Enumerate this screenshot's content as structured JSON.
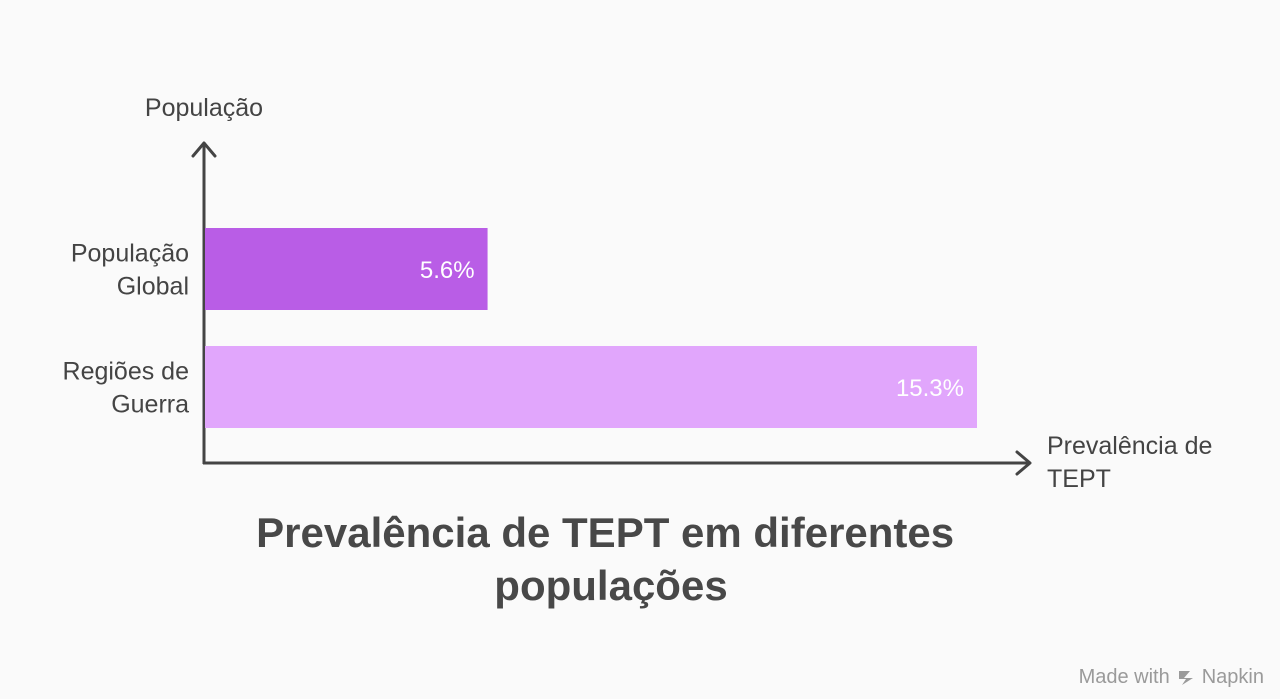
{
  "chart_data": {
    "type": "bar",
    "orientation": "horizontal",
    "title_lines": [
      "Prevalência de TEPT em diferentes",
      "populações"
    ],
    "ylabel": "População",
    "xlabel_lines": [
      "Prevalência de",
      "TEPT"
    ],
    "categories": [
      {
        "lines": [
          "População",
          "Global"
        ]
      },
      {
        "lines": [
          "Regiões de",
          "Guerra"
        ]
      }
    ],
    "values": [
      5.6,
      15.3
    ],
    "value_labels": [
      "5.6%",
      "15.3%"
    ],
    "colors": [
      "#b95de6",
      "#e1a6fc"
    ],
    "xlim": [
      0,
      15.3
    ],
    "grid": false,
    "legend": "none"
  },
  "watermark": {
    "prefix": "Made with",
    "brand": "Napkin"
  },
  "colors": {
    "background": "#fafafa",
    "axis": "#444444",
    "text": "#444444"
  }
}
